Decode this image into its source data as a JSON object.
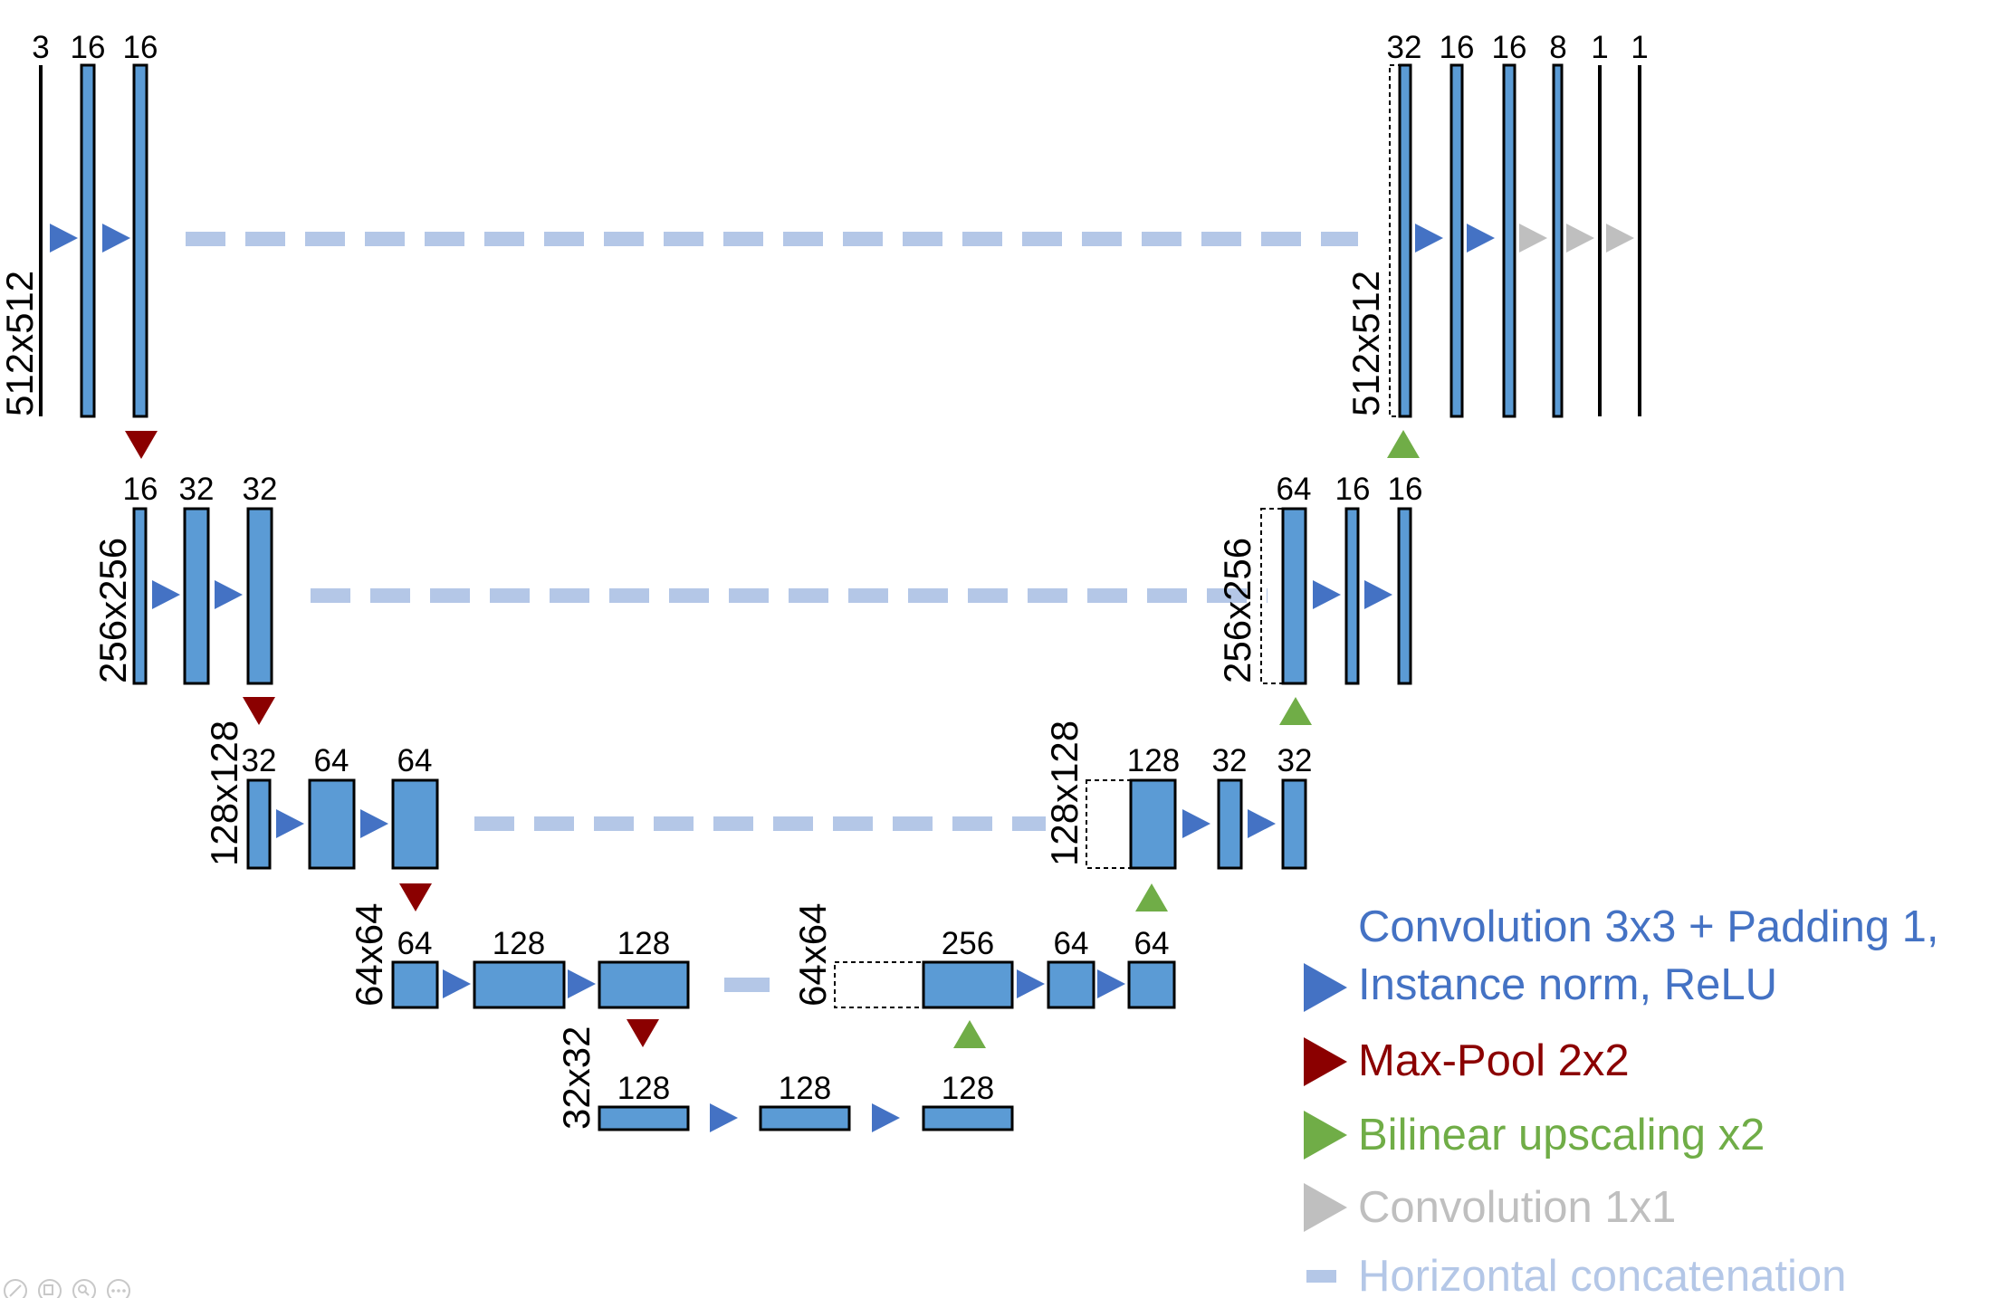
{
  "colors": {
    "block": "#5b9bd5",
    "block_stroke": "#000000",
    "conv3x3": "#4472c4",
    "maxpool": "#8b0000",
    "upscale": "#70ad47",
    "conv1x1": "#bfbfbf",
    "concat": "#b4c7e7"
  },
  "icons": {
    "conv3x3": "right-triangle-blue",
    "maxpool": "down-triangle-red",
    "upscale": "up-triangle-green",
    "conv1x1": "right-triangle-gray",
    "concat": "dash-light-blue"
  },
  "levels": {
    "l1": {
      "dim_left": "512x512",
      "dim_right": "512x512"
    },
    "l2": {
      "dim_left": "256x256",
      "dim_right": "256x256"
    },
    "l3": {
      "dim_left": "128x128",
      "dim_right": "128x128"
    },
    "l4": {
      "dim_left": "64x64",
      "dim_right": "64x64"
    },
    "l5": {
      "dim": "32x32"
    }
  },
  "channels": {
    "enc1": [
      "3",
      "16",
      "16"
    ],
    "dec1": [
      "32",
      "16",
      "16",
      "8",
      "1",
      "1"
    ],
    "enc2": [
      "16",
      "32",
      "32"
    ],
    "dec2": [
      "64",
      "16",
      "16"
    ],
    "enc3": [
      "32",
      "64",
      "64"
    ],
    "dec3": [
      "128",
      "32",
      "32"
    ],
    "enc4": [
      "64",
      "128",
      "128"
    ],
    "dec4": [
      "256",
      "64",
      "64"
    ],
    "bottleneck": [
      "128",
      "128",
      "128"
    ]
  },
  "legend": {
    "conv3x3_line1": "Convolution 3x3 + Padding 1,",
    "conv3x3_line2": "Instance norm, ReLU",
    "maxpool": "Max-Pool 2x2",
    "upscale": "Bilinear upscaling x2",
    "conv1x1": "Convolution 1x1",
    "concat": "Horizontal concatenation"
  }
}
